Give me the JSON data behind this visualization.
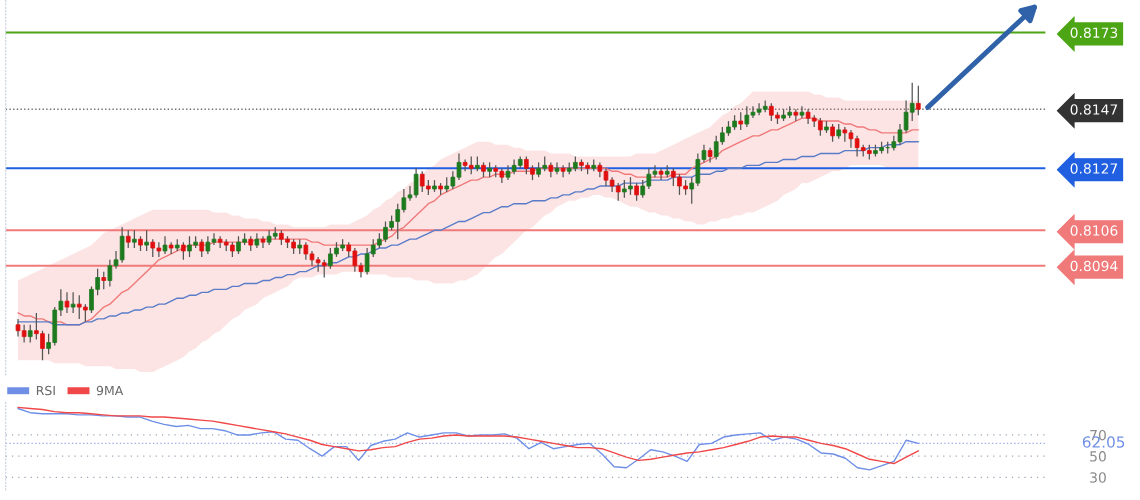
{
  "chart_data": [
    {
      "type": "candlestick",
      "tick_labels": "y",
      "ylim": [
        0.8057,
        0.8184
      ],
      "yticks": [
        0.8094,
        0.8106,
        0.8127,
        0.8147,
        0.8173
      ],
      "categories": [
        null,
        null,
        null,
        null,
        null,
        null,
        null,
        null,
        null,
        null,
        null,
        null,
        null,
        null,
        null,
        null,
        null,
        null,
        null,
        null,
        null,
        null,
        null,
        null,
        null,
        null,
        null,
        null,
        null,
        null,
        null,
        null,
        null,
        null,
        null,
        null,
        null,
        null,
        null,
        null,
        null,
        null,
        null,
        null,
        null,
        null,
        null,
        null,
        null,
        null,
        null,
        null,
        null,
        null,
        null,
        null,
        null,
        null,
        null,
        null,
        null,
        null,
        null,
        null,
        null,
        null,
        null,
        null,
        null,
        null,
        null,
        null,
        null,
        null,
        null,
        null,
        null,
        null,
        null,
        null,
        null,
        null,
        null,
        null,
        null,
        null,
        null,
        null,
        null,
        null,
        null,
        null,
        null,
        null,
        null,
        null,
        null,
        null,
        null,
        null,
        null,
        null,
        null,
        null,
        null,
        null,
        null,
        null,
        null,
        null,
        null,
        null,
        null,
        null,
        null,
        null,
        null,
        null,
        null,
        null,
        null,
        null,
        null,
        null,
        null,
        null,
        null,
        null,
        null,
        null,
        null,
        null,
        null,
        null,
        null,
        null,
        null,
        null,
        null,
        null,
        null,
        null,
        null,
        null,
        null,
        null,
        null,
        null
      ],
      "ohlc": [
        [
          0.8074,
          0.8076,
          0.807,
          0.8072
        ],
        [
          0.8072,
          0.8074,
          0.8068,
          0.807
        ],
        [
          0.807,
          0.8074,
          0.8068,
          0.8072
        ],
        [
          0.8072,
          0.8078,
          0.8069,
          0.8071
        ],
        [
          0.8071,
          0.8072,
          0.8062,
          0.8066
        ],
        [
          0.8066,
          0.8071,
          0.8064,
          0.8068
        ],
        [
          0.8068,
          0.808,
          0.8067,
          0.8079
        ],
        [
          0.8079,
          0.8086,
          0.8077,
          0.8082
        ],
        [
          0.8082,
          0.8085,
          0.8078,
          0.808
        ],
        [
          0.808,
          0.8085,
          0.8078,
          0.8081
        ],
        [
          0.8081,
          0.8084,
          0.8076,
          0.808
        ],
        [
          0.808,
          0.8081,
          0.8075,
          0.8079
        ],
        [
          0.8079,
          0.8087,
          0.8078,
          0.8086
        ],
        [
          0.8086,
          0.8093,
          0.8084,
          0.809
        ],
        [
          0.809,
          0.8092,
          0.8086,
          0.8089
        ],
        [
          0.8089,
          0.8096,
          0.8087,
          0.8094
        ],
        [
          0.8094,
          0.8099,
          0.8093,
          0.8096
        ],
        [
          0.8096,
          0.8107,
          0.8095,
          0.8104
        ],
        [
          0.8104,
          0.8106,
          0.81,
          0.8102
        ],
        [
          0.8102,
          0.8106,
          0.81,
          0.8103
        ],
        [
          0.8103,
          0.8104,
          0.8099,
          0.8101
        ],
        [
          0.8101,
          0.8106,
          0.8099,
          0.8102
        ],
        [
          0.8102,
          0.8103,
          0.8097,
          0.81
        ],
        [
          0.81,
          0.8102,
          0.8097,
          0.8099
        ],
        [
          0.8099,
          0.8104,
          0.8098,
          0.8101
        ],
        [
          0.8101,
          0.8102,
          0.8098,
          0.81
        ],
        [
          0.81,
          0.8103,
          0.8099,
          0.8101
        ],
        [
          0.8101,
          0.8102,
          0.8096,
          0.8099
        ],
        [
          0.8099,
          0.8104,
          0.8097,
          0.8101
        ],
        [
          0.8101,
          0.8104,
          0.81,
          0.8102
        ],
        [
          0.8102,
          0.8103,
          0.8097,
          0.8099
        ],
        [
          0.8099,
          0.8104,
          0.8098,
          0.8102
        ],
        [
          0.8102,
          0.8105,
          0.8101,
          0.8103
        ],
        [
          0.8103,
          0.8104,
          0.81,
          0.8102
        ],
        [
          0.8102,
          0.8103,
          0.8099,
          0.8101
        ],
        [
          0.8101,
          0.8102,
          0.8097,
          0.8099
        ],
        [
          0.8099,
          0.8104,
          0.8098,
          0.8102
        ],
        [
          0.8102,
          0.8105,
          0.8101,
          0.8103
        ],
        [
          0.8103,
          0.8104,
          0.8099,
          0.8101
        ],
        [
          0.8101,
          0.8105,
          0.81,
          0.8103
        ],
        [
          0.8103,
          0.8104,
          0.81,
          0.8102
        ],
        [
          0.8102,
          0.8106,
          0.8101,
          0.8104
        ],
        [
          0.8104,
          0.8107,
          0.8103,
          0.8105
        ],
        [
          0.8105,
          0.8106,
          0.8101,
          0.8103
        ],
        [
          0.8103,
          0.8104,
          0.81,
          0.8102
        ],
        [
          0.8102,
          0.8103,
          0.8098,
          0.81
        ],
        [
          0.81,
          0.8103,
          0.8098,
          0.8101
        ],
        [
          0.8101,
          0.8102,
          0.8096,
          0.8098
        ],
        [
          0.8098,
          0.8099,
          0.8094,
          0.8096
        ],
        [
          0.8096,
          0.8097,
          0.8092,
          0.8095
        ],
        [
          0.8095,
          0.8096,
          0.809,
          0.8094
        ],
        [
          0.8094,
          0.81,
          0.8093,
          0.8098
        ],
        [
          0.8098,
          0.8102,
          0.8097,
          0.81
        ],
        [
          0.81,
          0.8103,
          0.8099,
          0.8101
        ],
        [
          0.8101,
          0.8102,
          0.8097,
          0.8099
        ],
        [
          0.8099,
          0.81,
          0.8092,
          0.8094
        ],
        [
          0.8094,
          0.8095,
          0.809,
          0.8092
        ],
        [
          0.8092,
          0.81,
          0.8091,
          0.8098
        ],
        [
          0.8098,
          0.8103,
          0.8097,
          0.8101
        ],
        [
          0.8101,
          0.8105,
          0.81,
          0.8103
        ],
        [
          0.8103,
          0.8109,
          0.8102,
          0.8107
        ],
        [
          0.8107,
          0.8111,
          0.8106,
          0.8109
        ],
        [
          0.8109,
          0.8115,
          0.8103,
          0.8113
        ],
        [
          0.8113,
          0.812,
          0.8112,
          0.8117
        ],
        [
          0.8117,
          0.8121,
          0.8116,
          0.8118
        ],
        [
          0.8118,
          0.8127,
          0.8117,
          0.8125
        ],
        [
          0.8125,
          0.8126,
          0.8119,
          0.8121
        ],
        [
          0.8121,
          0.8123,
          0.8118,
          0.812
        ],
        [
          0.812,
          0.8123,
          0.8119,
          0.8121
        ],
        [
          0.8121,
          0.8122,
          0.8118,
          0.812
        ],
        [
          0.812,
          0.8124,
          0.8119,
          0.8121
        ],
        [
          0.8121,
          0.8126,
          0.812,
          0.8124
        ],
        [
          0.8124,
          0.8132,
          0.8123,
          0.8129
        ],
        [
          0.8129,
          0.813,
          0.8126,
          0.8128
        ],
        [
          0.8128,
          0.8131,
          0.8125,
          0.8127
        ],
        [
          0.8127,
          0.8131,
          0.8126,
          0.8128
        ],
        [
          0.8128,
          0.8129,
          0.8124,
          0.8126
        ],
        [
          0.8126,
          0.8129,
          0.8124,
          0.8127
        ],
        [
          0.8127,
          0.8128,
          0.8124,
          0.8126
        ],
        [
          0.8126,
          0.8127,
          0.8122,
          0.8124
        ],
        [
          0.8124,
          0.8128,
          0.8123,
          0.8126
        ],
        [
          0.8126,
          0.813,
          0.8125,
          0.8128
        ],
        [
          0.8128,
          0.8131,
          0.8127,
          0.813
        ],
        [
          0.813,
          0.8131,
          0.8125,
          0.8127
        ],
        [
          0.8127,
          0.8128,
          0.8123,
          0.8125
        ],
        [
          0.8125,
          0.8129,
          0.8124,
          0.8127
        ],
        [
          0.8127,
          0.8131,
          0.8126,
          0.8128
        ],
        [
          0.8128,
          0.8129,
          0.8124,
          0.8126
        ],
        [
          0.8126,
          0.8129,
          0.8125,
          0.8127
        ],
        [
          0.8127,
          0.8128,
          0.8124,
          0.8126
        ],
        [
          0.8126,
          0.8129,
          0.8125,
          0.8127
        ],
        [
          0.8127,
          0.8131,
          0.8126,
          0.8129
        ],
        [
          0.8129,
          0.813,
          0.8126,
          0.8128
        ],
        [
          0.8128,
          0.8129,
          0.8125,
          0.8127
        ],
        [
          0.8127,
          0.813,
          0.8126,
          0.8128
        ],
        [
          0.8128,
          0.8129,
          0.8124,
          0.8126
        ],
        [
          0.8126,
          0.8127,
          0.8121,
          0.8123
        ],
        [
          0.8123,
          0.8124,
          0.8119,
          0.8121
        ],
        [
          0.8121,
          0.8122,
          0.8116,
          0.8119
        ],
        [
          0.8119,
          0.8123,
          0.8117,
          0.812
        ],
        [
          0.812,
          0.8124,
          0.8118,
          0.8121
        ],
        [
          0.8121,
          0.8122,
          0.8116,
          0.8118
        ],
        [
          0.8118,
          0.8123,
          0.8117,
          0.8121
        ],
        [
          0.8121,
          0.8127,
          0.812,
          0.8125
        ],
        [
          0.8125,
          0.8128,
          0.8124,
          0.8126
        ],
        [
          0.8126,
          0.8127,
          0.8123,
          0.8125
        ],
        [
          0.8125,
          0.8128,
          0.8124,
          0.8126
        ],
        [
          0.8126,
          0.8127,
          0.8121,
          0.8124
        ],
        [
          0.8124,
          0.8125,
          0.8118,
          0.8121
        ],
        [
          0.8121,
          0.8123,
          0.8118,
          0.812
        ],
        [
          0.812,
          0.8124,
          0.8115,
          0.8122
        ],
        [
          0.8122,
          0.8132,
          0.8121,
          0.813
        ],
        [
          0.813,
          0.8135,
          0.8129,
          0.8133
        ],
        [
          0.8133,
          0.8134,
          0.8129,
          0.8131
        ],
        [
          0.8131,
          0.8138,
          0.813,
          0.8136
        ],
        [
          0.8136,
          0.8141,
          0.8135,
          0.8139
        ],
        [
          0.8139,
          0.8143,
          0.8138,
          0.8141
        ],
        [
          0.8141,
          0.8145,
          0.814,
          0.8143
        ],
        [
          0.8143,
          0.8146,
          0.814,
          0.8142
        ],
        [
          0.8142,
          0.8148,
          0.8141,
          0.8145
        ],
        [
          0.8145,
          0.8148,
          0.8144,
          0.8146
        ],
        [
          0.8146,
          0.8149,
          0.8145,
          0.8147
        ],
        [
          0.8147,
          0.815,
          0.8146,
          0.8148
        ],
        [
          0.8148,
          0.8149,
          0.8143,
          0.8145
        ],
        [
          0.8145,
          0.8146,
          0.8142,
          0.8144
        ],
        [
          0.8144,
          0.8147,
          0.8143,
          0.8145
        ],
        [
          0.8145,
          0.8148,
          0.8144,
          0.8146
        ],
        [
          0.8146,
          0.8147,
          0.8143,
          0.8145
        ],
        [
          0.8145,
          0.8148,
          0.8144,
          0.8146
        ],
        [
          0.8146,
          0.8147,
          0.8142,
          0.8144
        ],
        [
          0.8144,
          0.8145,
          0.8141,
          0.8143
        ],
        [
          0.8143,
          0.8144,
          0.8138,
          0.814
        ],
        [
          0.814,
          0.8143,
          0.8139,
          0.8141
        ],
        [
          0.8141,
          0.8142,
          0.8136,
          0.8138
        ],
        [
          0.8138,
          0.8142,
          0.8137,
          0.814
        ],
        [
          0.814,
          0.8141,
          0.8136,
          0.8139
        ],
        [
          0.8139,
          0.814,
          0.8134,
          0.8137
        ],
        [
          0.8137,
          0.8138,
          0.8131,
          0.8134
        ],
        [
          0.8134,
          0.8135,
          0.8131,
          0.8133
        ],
        [
          0.8133,
          0.8135,
          0.813,
          0.8132
        ],
        [
          0.8132,
          0.8135,
          0.8131,
          0.8133
        ],
        [
          0.8133,
          0.8136,
          0.8132,
          0.8134
        ],
        [
          0.8134,
          0.8136,
          0.8132,
          0.8134
        ],
        [
          0.8134,
          0.8138,
          0.8133,
          0.8136
        ],
        [
          0.8136,
          0.8142,
          0.8135,
          0.814
        ],
        [
          0.814,
          0.815,
          0.8139,
          0.8146
        ],
        [
          0.8146,
          0.8156,
          0.8143,
          0.8149
        ],
        [
          0.8149,
          0.8155,
          0.8145,
          0.8147
        ]
      ],
      "series": [
        {
          "type": "line",
          "color": "#f07878",
          "values": [
            0.8078,
            0.8077,
            0.8077,
            0.8076,
            0.8076,
            0.8075,
            0.8075,
            0.8075,
            0.8074,
            0.8074,
            0.8074,
            0.8075,
            0.8076,
            0.8078,
            0.808,
            0.8081,
            0.8083,
            0.8085,
            0.8086,
            0.8088,
            0.809,
            0.8092,
            0.8094,
            0.8096,
            0.8097,
            0.8098,
            0.8099,
            0.81,
            0.8101,
            0.8101,
            0.8101,
            0.8101,
            0.8102,
            0.8102,
            0.8102,
            0.8102,
            0.8102,
            0.8102,
            0.8102,
            0.8103,
            0.8103,
            0.8103,
            0.8103,
            0.8103,
            0.8103,
            0.8103,
            0.8103,
            0.8103,
            0.8102,
            0.8102,
            0.8101,
            0.8101,
            0.8101,
            0.8101,
            0.8101,
            0.8101,
            0.8101,
            0.8101,
            0.8101,
            0.8102,
            0.8103,
            0.8104,
            0.8106,
            0.8107,
            0.8109,
            0.8111,
            0.8113,
            0.8115,
            0.8116,
            0.8118,
            0.8119,
            0.812,
            0.8121,
            0.8122,
            0.8123,
            0.8123,
            0.8124,
            0.8124,
            0.8125,
            0.8125,
            0.8125,
            0.8126,
            0.8126,
            0.8126,
            0.8126,
            0.8127,
            0.8127,
            0.8127,
            0.8127,
            0.8127,
            0.8127,
            0.8127,
            0.8127,
            0.8127,
            0.8127,
            0.8127,
            0.8127,
            0.8126,
            0.8126,
            0.8125,
            0.8125,
            0.8124,
            0.8124,
            0.8124,
            0.8124,
            0.8124,
            0.8124,
            0.8125,
            0.8125,
            0.8125,
            0.8127,
            0.8128,
            0.8129,
            0.813,
            0.8131,
            0.8133,
            0.8134,
            0.8135,
            0.8136,
            0.8137,
            0.8138,
            0.8138,
            0.8139,
            0.814,
            0.814,
            0.8141,
            0.8142,
            0.8143,
            0.8144,
            0.8144,
            0.8144,
            0.8143,
            0.8143,
            0.8143,
            0.8143,
            0.8142,
            0.8142,
            0.8141,
            0.8141,
            0.814,
            0.814,
            0.8139,
            0.8139,
            0.8139,
            0.8139,
            0.8139,
            0.814,
            0.814
          ],
          "upper": [
            0.8089,
            0.809,
            0.8091,
            0.8092,
            0.8093,
            0.8094,
            0.8095,
            0.8096,
            0.8097,
            0.8098,
            0.8099,
            0.81,
            0.8101,
            0.8103,
            0.8105,
            0.8106,
            0.8107,
            0.8108,
            0.8109,
            0.811,
            0.8111,
            0.8112,
            0.8113,
            0.8113,
            0.8113,
            0.8113,
            0.8113,
            0.8113,
            0.8113,
            0.8113,
            0.8113,
            0.8113,
            0.8112,
            0.8112,
            0.8112,
            0.8111,
            0.8111,
            0.811,
            0.811,
            0.811,
            0.8109,
            0.8109,
            0.8108,
            0.8108,
            0.8108,
            0.8107,
            0.8107,
            0.8107,
            0.8107,
            0.8107,
            0.8107,
            0.8108,
            0.8108,
            0.8108,
            0.8108,
            0.8109,
            0.811,
            0.8111,
            0.8113,
            0.8114,
            0.8116,
            0.8117,
            0.8119,
            0.812,
            0.8122,
            0.8123,
            0.8125,
            0.8127,
            0.8128,
            0.813,
            0.8131,
            0.8132,
            0.8133,
            0.8134,
            0.8135,
            0.8136,
            0.8136,
            0.8136,
            0.8135,
            0.8135,
            0.8135,
            0.8134,
            0.8134,
            0.8133,
            0.8133,
            0.8133,
            0.8133,
            0.8132,
            0.8132,
            0.8132,
            0.8132,
            0.8131,
            0.8131,
            0.8131,
            0.8131,
            0.8131,
            0.8131,
            0.8131,
            0.8131,
            0.8131,
            0.8131,
            0.8132,
            0.8132,
            0.8132,
            0.8132,
            0.8133,
            0.8134,
            0.8135,
            0.8136,
            0.8137,
            0.8138,
            0.8139,
            0.814,
            0.8141,
            0.8143,
            0.8145,
            0.8146,
            0.8148,
            0.8149,
            0.8151,
            0.8153,
            0.8153,
            0.8153,
            0.8153,
            0.8153,
            0.8153,
            0.8153,
            0.8153,
            0.8153,
            0.8153,
            0.8152,
            0.8152,
            0.8151,
            0.8151,
            0.8151,
            0.815,
            0.815,
            0.815,
            0.815,
            0.815,
            0.815,
            0.815,
            0.815,
            0.815,
            0.815,
            0.815,
            0.815,
            0.815
          ],
          "lower": [
            0.8062,
            0.8062,
            0.8062,
            0.8062,
            0.8062,
            0.8062,
            0.8061,
            0.8061,
            0.8061,
            0.8061,
            0.8061,
            0.806,
            0.806,
            0.806,
            0.806,
            0.806,
            0.8059,
            0.8059,
            0.8059,
            0.8059,
            0.8058,
            0.8058,
            0.8058,
            0.8059,
            0.806,
            0.8061,
            0.8062,
            0.8063,
            0.8065,
            0.8066,
            0.8068,
            0.8069,
            0.8071,
            0.8072,
            0.8074,
            0.8076,
            0.8077,
            0.8079,
            0.808,
            0.8081,
            0.8083,
            0.8084,
            0.8085,
            0.8086,
            0.8087,
            0.8089,
            0.809,
            0.809,
            0.809,
            0.8091,
            0.8091,
            0.8091,
            0.8091,
            0.8092,
            0.8092,
            0.8092,
            0.8092,
            0.8091,
            0.8091,
            0.8091,
            0.8091,
            0.809,
            0.809,
            0.809,
            0.809,
            0.8089,
            0.8089,
            0.8089,
            0.8088,
            0.8088,
            0.8088,
            0.8088,
            0.8089,
            0.8089,
            0.809,
            0.8091,
            0.8093,
            0.8095,
            0.8097,
            0.8098,
            0.81,
            0.8102,
            0.8104,
            0.8106,
            0.8107,
            0.8109,
            0.8111,
            0.8112,
            0.8114,
            0.8115,
            0.8116,
            0.8116,
            0.8117,
            0.8117,
            0.8118,
            0.8118,
            0.8117,
            0.8117,
            0.8116,
            0.8115,
            0.8114,
            0.8114,
            0.8113,
            0.8112,
            0.8112,
            0.8111,
            0.8111,
            0.811,
            0.811,
            0.8109,
            0.8109,
            0.8108,
            0.8108,
            0.8109,
            0.8109,
            0.811,
            0.811,
            0.8111,
            0.8111,
            0.8112,
            0.8112,
            0.8113,
            0.8114,
            0.8115,
            0.8116,
            0.8118,
            0.8119,
            0.812,
            0.8122,
            0.8122,
            0.8123,
            0.8124,
            0.8125,
            0.8126,
            0.8126,
            0.8127,
            0.8128,
            0.8128,
            0.8128,
            0.8128,
            0.8128,
            0.8128,
            0.8127,
            0.8127,
            0.8127,
            0.8127,
            0.8127,
            0.8127
          ]
        },
        {
          "type": "line",
          "color": "#5a7cc8",
          "values": [
            0.8075,
            0.8075,
            0.8075,
            0.8075,
            0.8075,
            0.8075,
            0.8074,
            0.8074,
            0.8074,
            0.8074,
            0.8074,
            0.8075,
            0.8075,
            0.8076,
            0.8076,
            0.8077,
            0.8077,
            0.8078,
            0.8078,
            0.8079,
            0.8079,
            0.808,
            0.808,
            0.8081,
            0.8081,
            0.8082,
            0.8083,
            0.8083,
            0.8084,
            0.8084,
            0.8085,
            0.8085,
            0.8086,
            0.8086,
            0.8086,
            0.8087,
            0.8087,
            0.8088,
            0.8088,
            0.8088,
            0.8089,
            0.8089,
            0.809,
            0.809,
            0.8091,
            0.8091,
            0.8092,
            0.8092,
            0.8093,
            0.8094,
            0.8094,
            0.8095,
            0.8095,
            0.8096,
            0.8097,
            0.8097,
            0.8098,
            0.8098,
            0.8099,
            0.81,
            0.81,
            0.8101,
            0.8101,
            0.8102,
            0.8103,
            0.8103,
            0.8104,
            0.8105,
            0.8106,
            0.8106,
            0.8107,
            0.8108,
            0.8109,
            0.8109,
            0.811,
            0.8111,
            0.8112,
            0.8112,
            0.8113,
            0.8114,
            0.8114,
            0.8115,
            0.8115,
            0.8115,
            0.8116,
            0.8116,
            0.8116,
            0.8117,
            0.8117,
            0.8118,
            0.8118,
            0.8119,
            0.8119,
            0.812,
            0.812,
            0.8121,
            0.8121,
            0.8121,
            0.8121,
            0.8122,
            0.8122,
            0.8122,
            0.8122,
            0.8123,
            0.8123,
            0.8123,
            0.8123,
            0.8124,
            0.8124,
            0.8124,
            0.8124,
            0.8125,
            0.8125,
            0.8125,
            0.8126,
            0.8126,
            0.8127,
            0.8127,
            0.8127,
            0.8128,
            0.8128,
            0.8128,
            0.8129,
            0.8129,
            0.8129,
            0.813,
            0.813,
            0.813,
            0.8131,
            0.8131,
            0.8131,
            0.8132,
            0.8132,
            0.8132,
            0.8132,
            0.8133,
            0.8133,
            0.8133,
            0.8133,
            0.8134,
            0.8134,
            0.8134,
            0.8135,
            0.8135,
            0.8135,
            0.8136,
            0.8136,
            0.8136
          ]
        }
      ],
      "ref_lines": [
        {
          "axis": "y",
          "value": 0.8173,
          "color": "#4ca514",
          "line_style": "solid"
        },
        {
          "axis": "y",
          "value": 0.8147,
          "color": "#333333",
          "line_style": "dotted"
        },
        {
          "axis": "y",
          "value": 0.8127,
          "color": "#1f5fe0",
          "line_style": "solid"
        },
        {
          "axis": "y",
          "value": 0.8106,
          "color": "#f07a7a",
          "line_style": "solid"
        },
        {
          "axis": "y",
          "value": 0.8094,
          "color": "#f07a7a",
          "line_style": "solid"
        }
      ]
    },
    {
      "type": "line",
      "tick_labels": "y",
      "ylim": [
        18,
        103
      ],
      "yticks": [
        30,
        50,
        70
      ],
      "grid": "y",
      "legend": "top left",
      "categories": [
        null,
        null,
        null,
        null,
        null,
        null,
        null,
        null,
        null,
        null,
        null,
        null,
        null,
        null,
        null,
        null,
        null,
        null,
        null,
        null,
        null,
        null,
        null,
        null,
        null,
        null,
        null,
        null,
        null,
        null,
        null,
        null,
        null,
        null,
        null,
        null,
        null,
        null,
        null,
        null,
        null,
        null,
        null,
        null,
        null,
        null,
        null,
        null,
        null,
        null,
        null,
        null,
        null,
        null,
        null,
        null,
        null,
        null,
        null,
        null,
        null,
        null,
        null,
        null,
        null,
        null,
        null,
        null,
        null,
        null,
        null,
        null,
        null,
        null,
        null
      ],
      "series": [
        {
          "name": "RSI",
          "color": "#6f8fe6",
          "values": [
            95,
            91,
            90,
            90,
            90,
            89,
            89,
            88,
            88,
            87,
            87,
            83,
            80,
            78,
            79,
            76,
            76,
            74,
            70,
            70,
            72,
            73,
            66,
            65,
            57,
            50,
            59,
            59,
            46,
            60,
            64,
            66,
            72,
            68,
            70,
            72,
            72,
            69,
            70,
            70,
            71,
            67,
            57,
            63,
            57,
            59,
            61,
            62,
            52,
            40,
            39,
            47,
            56,
            54,
            50,
            45,
            61,
            62,
            68,
            70,
            71,
            72,
            65,
            68,
            66,
            61,
            53,
            52,
            48,
            39,
            37,
            41,
            45,
            65,
            62.05
          ]
        },
        {
          "name": "9MA",
          "color": "#f04848",
          "values": [
            96,
            95,
            94,
            92,
            91,
            91,
            90,
            89,
            88,
            88,
            88,
            87,
            87,
            86,
            85,
            84,
            83,
            81,
            79,
            77,
            75,
            73,
            71,
            68,
            65,
            61,
            59,
            57,
            55,
            56,
            58,
            59,
            63,
            66,
            67,
            69,
            70,
            69,
            69,
            69,
            69,
            68,
            66,
            64,
            62,
            60,
            58,
            58,
            57,
            53,
            49,
            46,
            47,
            49,
            51,
            53,
            54,
            56,
            58,
            61,
            64,
            68,
            69,
            68,
            68,
            65,
            62,
            60,
            57,
            52,
            47,
            45,
            43,
            49,
            55
          ]
        }
      ],
      "ref_lines": [
        {
          "axis": "y",
          "value": 62.05,
          "label": "62.05",
          "color": "#6f8fe6",
          "line_style": "dotted"
        }
      ]
    }
  ]
}
